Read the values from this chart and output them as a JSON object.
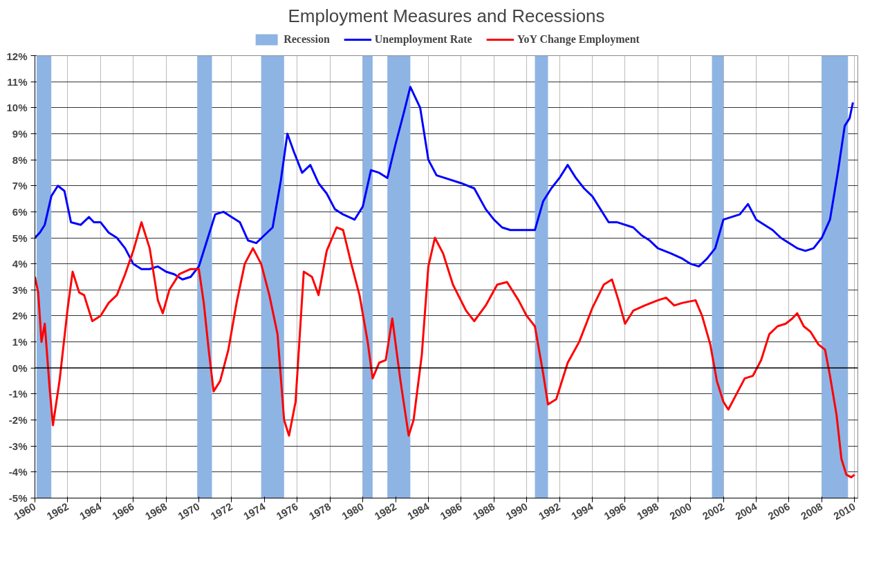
{
  "chart_data": {
    "type": "line",
    "title": "Employment Measures and Recessions",
    "xlim": [
      1960,
      2010.2
    ],
    "xticks": [
      1960,
      1962,
      1964,
      1966,
      1968,
      1970,
      1972,
      1974,
      1976,
      1978,
      1980,
      1982,
      1984,
      1986,
      1988,
      1990,
      1992,
      1994,
      1996,
      1998,
      2000,
      2002,
      2004,
      2006,
      2008,
      2010
    ],
    "ylim": [
      -5,
      12
    ],
    "yticks": [
      {
        "value": -5,
        "label": "-5%"
      },
      {
        "value": -4,
        "label": "-4%"
      },
      {
        "value": -3,
        "label": "-3%"
      },
      {
        "value": -2,
        "label": "-2%"
      },
      {
        "value": -1,
        "label": "-1%"
      },
      {
        "value": 0,
        "label": "0%"
      },
      {
        "value": 1,
        "label": "1%"
      },
      {
        "value": 2,
        "label": "2%"
      },
      {
        "value": 3,
        "label": "3%"
      },
      {
        "value": 4,
        "label": "4%"
      },
      {
        "value": 5,
        "label": "5%"
      },
      {
        "value": 6,
        "label": "6%"
      },
      {
        "value": 7,
        "label": "7%"
      },
      {
        "value": 8,
        "label": "8%"
      },
      {
        "value": 9,
        "label": "9%"
      },
      {
        "value": 10,
        "label": "10%"
      },
      {
        "value": 11,
        "label": "11%"
      },
      {
        "value": 12,
        "label": "12%"
      }
    ],
    "grid": true,
    "legend": "top",
    "marker": "none",
    "line_style": "solid",
    "bands": [
      {
        "axis": "x",
        "from": 1960.1,
        "to": 1961.0,
        "color": "#8eb4e3"
      },
      {
        "axis": "x",
        "from": 1969.9,
        "to": 1970.8,
        "color": "#8eb4e3"
      },
      {
        "axis": "x",
        "from": 1973.8,
        "to": 1975.2,
        "color": "#8eb4e3"
      },
      {
        "axis": "x",
        "from": 1980.0,
        "to": 1980.6,
        "color": "#8eb4e3"
      },
      {
        "axis": "x",
        "from": 1981.5,
        "to": 1982.9,
        "color": "#8eb4e3"
      },
      {
        "axis": "x",
        "from": 1990.5,
        "to": 1991.3,
        "color": "#8eb4e3"
      },
      {
        "axis": "x",
        "from": 2001.3,
        "to": 2002.0,
        "color": "#8eb4e3"
      },
      {
        "axis": "x",
        "from": 2008.0,
        "to": 2009.6,
        "label": "Recession",
        "color": "#8eb4e3"
      }
    ],
    "series": [
      {
        "name": "Unemployment Rate",
        "color": "#0000ff",
        "x": [
          1960.0,
          1960.3,
          1960.6,
          1961.0,
          1961.4,
          1961.8,
          1962.2,
          1962.8,
          1963.3,
          1963.6,
          1964.0,
          1964.5,
          1965.0,
          1965.5,
          1966.0,
          1966.5,
          1967.0,
          1967.5,
          1968.0,
          1968.5,
          1969.0,
          1969.5,
          1970.0,
          1970.5,
          1971.0,
          1971.5,
          1972.0,
          1972.5,
          1973.0,
          1973.5,
          1974.0,
          1974.5,
          1975.0,
          1975.4,
          1975.8,
          1976.3,
          1976.8,
          1977.3,
          1977.8,
          1978.3,
          1978.8,
          1979.5,
          1980.0,
          1980.5,
          1981.0,
          1981.5,
          1982.0,
          1982.5,
          1982.9,
          1983.5,
          1984.0,
          1984.5,
          1985.0,
          1986.0,
          1986.8,
          1987.5,
          1988.0,
          1988.5,
          1989.0,
          1989.8,
          1990.5,
          1991.0,
          1991.5,
          1992.0,
          1992.5,
          1993.0,
          1993.5,
          1994.0,
          1994.5,
          1995.0,
          1995.5,
          1996.5,
          1997.0,
          1997.5,
          1998.0,
          1998.8,
          1999.5,
          2000.0,
          2000.5,
          2001.0,
          2001.5,
          2002.0,
          2002.5,
          2003.0,
          2003.5,
          2004.0,
          2004.5,
          2005.0,
          2005.5,
          2006.0,
          2006.5,
          2007.0,
          2007.5,
          2008.0,
          2008.5,
          2009.0,
          2009.4,
          2009.7,
          2009.9
        ],
        "values": [
          5.0,
          5.2,
          5.5,
          6.6,
          7.0,
          6.8,
          5.6,
          5.5,
          5.8,
          5.6,
          5.6,
          5.2,
          5.0,
          4.6,
          4.0,
          3.8,
          3.8,
          3.9,
          3.7,
          3.6,
          3.4,
          3.5,
          3.9,
          4.9,
          5.9,
          6.0,
          5.8,
          5.6,
          4.9,
          4.8,
          5.1,
          5.4,
          7.2,
          9.0,
          8.3,
          7.5,
          7.8,
          7.1,
          6.7,
          6.1,
          5.9,
          5.7,
          6.2,
          7.6,
          7.5,
          7.3,
          8.6,
          9.8,
          10.8,
          10.0,
          8.0,
          7.4,
          7.3,
          7.1,
          6.9,
          6.1,
          5.7,
          5.4,
          5.3,
          5.3,
          5.3,
          6.4,
          6.9,
          7.3,
          7.8,
          7.3,
          6.9,
          6.6,
          6.1,
          5.6,
          5.6,
          5.4,
          5.1,
          4.9,
          4.6,
          4.4,
          4.2,
          4.0,
          3.9,
          4.2,
          4.6,
          5.7,
          5.8,
          5.9,
          6.3,
          5.7,
          5.5,
          5.3,
          5.0,
          4.8,
          4.6,
          4.5,
          4.6,
          5.0,
          5.7,
          7.6,
          9.3,
          9.6,
          10.2
        ]
      },
      {
        "name": "YoY Change Employment",
        "color": "#ff0000",
        "x": [
          1960.0,
          1960.2,
          1960.4,
          1960.6,
          1960.9,
          1961.1,
          1961.5,
          1962.0,
          1962.3,
          1962.7,
          1963.0,
          1963.5,
          1964.0,
          1964.5,
          1965.0,
          1965.5,
          1966.0,
          1966.5,
          1967.0,
          1967.5,
          1967.8,
          1968.2,
          1968.8,
          1969.5,
          1970.0,
          1970.3,
          1970.6,
          1970.9,
          1971.3,
          1971.8,
          1972.3,
          1972.8,
          1973.3,
          1973.8,
          1974.3,
          1974.8,
          1975.2,
          1975.5,
          1975.9,
          1976.4,
          1976.9,
          1977.3,
          1977.8,
          1978.4,
          1978.8,
          1979.3,
          1979.8,
          1980.3,
          1980.6,
          1981.0,
          1981.4,
          1981.8,
          1982.3,
          1982.8,
          1983.1,
          1983.6,
          1984.0,
          1984.4,
          1984.9,
          1985.5,
          1986.3,
          1986.8,
          1987.5,
          1988.2,
          1988.8,
          1989.5,
          1990.0,
          1990.5,
          1991.0,
          1991.3,
          1991.8,
          1992.5,
          1993.2,
          1994.0,
          1994.7,
          1995.2,
          1995.6,
          1996.0,
          1996.5,
          1997.2,
          1998.0,
          1998.5,
          1999.0,
          1999.5,
          2000.3,
          2000.7,
          2001.2,
          2001.6,
          2002.0,
          2002.3,
          2002.8,
          2003.3,
          2003.8,
          2004.3,
          2004.8,
          2005.3,
          2005.8,
          2006.2,
          2006.5,
          2006.9,
          2007.3,
          2007.8,
          2008.2,
          2008.5,
          2008.9,
          2009.2,
          2009.5,
          2009.8,
          2010.0
        ],
        "values": [
          3.5,
          2.9,
          1.0,
          1.7,
          -0.8,
          -2.2,
          -0.5,
          2.3,
          3.7,
          2.9,
          2.8,
          1.8,
          2.0,
          2.5,
          2.8,
          3.6,
          4.5,
          5.6,
          4.6,
          2.6,
          2.1,
          3.0,
          3.6,
          3.8,
          3.8,
          2.5,
          0.7,
          -0.9,
          -0.5,
          0.7,
          2.5,
          4.0,
          4.6,
          4.0,
          2.8,
          1.3,
          -2.0,
          -2.6,
          -1.3,
          3.7,
          3.5,
          2.8,
          4.5,
          5.4,
          5.3,
          4.0,
          2.8,
          1.0,
          -0.4,
          0.2,
          0.3,
          1.9,
          -0.5,
          -2.6,
          -2.0,
          0.5,
          3.9,
          5.0,
          4.4,
          3.2,
          2.2,
          1.8,
          2.4,
          3.2,
          3.3,
          2.6,
          2.0,
          1.6,
          -0.2,
          -1.4,
          -1.2,
          0.2,
          1.0,
          2.3,
          3.2,
          3.4,
          2.6,
          1.7,
          2.2,
          2.4,
          2.6,
          2.7,
          2.4,
          2.5,
          2.6,
          2.0,
          0.9,
          -0.5,
          -1.3,
          -1.6,
          -1.0,
          -0.4,
          -0.3,
          0.3,
          1.3,
          1.6,
          1.7,
          1.9,
          2.1,
          1.6,
          1.4,
          0.9,
          0.7,
          -0.3,
          -1.8,
          -3.5,
          -4.1,
          -4.2,
          -4.1
        ]
      }
    ]
  }
}
